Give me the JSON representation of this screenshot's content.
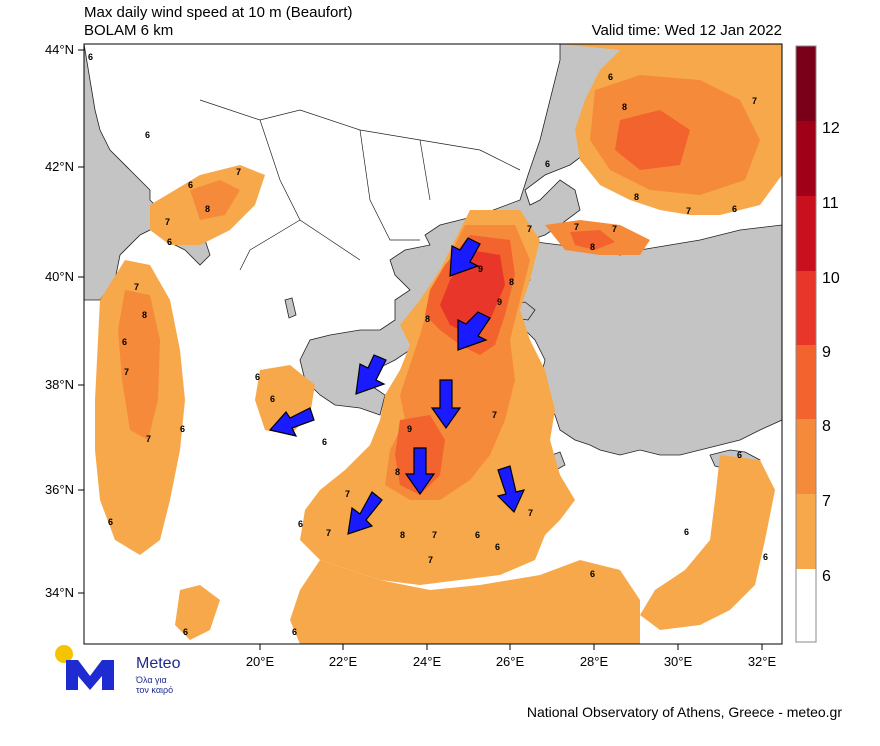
{
  "header": {
    "title": "Max daily wind speed at 10 m (Beaufort)",
    "subtitle": "BOLAM 6 km",
    "valid_time": "Valid time: Wed 12 Jan 2022"
  },
  "axes": {
    "lat_labels": [
      "44°N",
      "42°N",
      "40°N",
      "38°N",
      "36°N",
      "34°N"
    ],
    "lon_labels": [
      "20°E",
      "22°E",
      "24°E",
      "26°E",
      "28°E",
      "30°E",
      "32°E"
    ]
  },
  "colorbar": {
    "labels": [
      "12",
      "11",
      "10",
      "9",
      "8",
      "7",
      "6"
    ],
    "colors": [
      "#7a0019",
      "#a00018",
      "#c8101e",
      "#e8372a",
      "#f2632e",
      "#f58b3a",
      "#f7a84a",
      "#ffffff"
    ]
  },
  "map_labels": {
    "contour_values": [
      "6",
      "7",
      "8",
      "9"
    ]
  },
  "colors": {
    "land": "#c4c4c4",
    "sea": "#ffffff",
    "arrow": "#1a1aff"
  },
  "logo": {
    "name": "Meteo",
    "tagline_1": "Όλα για",
    "tagline_2": "τον καιρό"
  },
  "footer": "National Observatory of Athens, Greece - meteo.gr"
}
